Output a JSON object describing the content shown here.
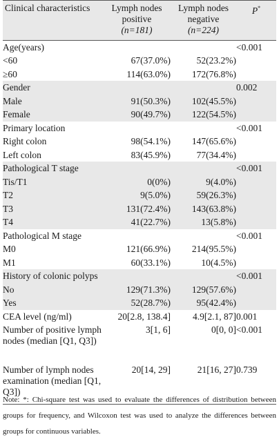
{
  "header": {
    "col1": "Clinical characteristics",
    "col2_line1": "Lymph nodes positive",
    "col2_line2": "(n=181)",
    "col3_line1": "Lymph nodes negative",
    "col3_line2": "(n=224)",
    "col4": "P",
    "col4_sup": "*"
  },
  "rows": [
    {
      "label": "Age(years)",
      "pos": "",
      "neg": "",
      "p": "<0.001",
      "kind": "group",
      "shade": false
    },
    {
      "label": "<60",
      "pos": "67(37.0%)",
      "neg": "52(23.2%)",
      "p": "",
      "kind": "sub",
      "shade": false
    },
    {
      "label": "≥60",
      "pos": "114(63.0%)",
      "neg": "172(76.8%)",
      "p": "",
      "kind": "sub",
      "shade": false
    },
    {
      "label": "Gender",
      "pos": "",
      "neg": "",
      "p": "0.002",
      "kind": "group",
      "shade": true
    },
    {
      "label": "Male",
      "pos": "91(50.3%)",
      "neg": "102(45.5%)",
      "p": "",
      "kind": "sub",
      "shade": true
    },
    {
      "label": "Female",
      "pos": "90(49.7%)",
      "neg": "122(54.5%)",
      "p": "",
      "kind": "sub",
      "shade": true
    },
    {
      "label": "Primary location",
      "pos": "",
      "neg": "",
      "p": "<0.001",
      "kind": "group",
      "shade": false
    },
    {
      "label": "Right colon",
      "pos": "98(54.1%)",
      "neg": "147(65.6%)",
      "p": "",
      "kind": "sub",
      "shade": false
    },
    {
      "label": "Left colon",
      "pos": "83(45.9%)",
      "neg": "77(34.4%)",
      "p": "",
      "kind": "sub",
      "shade": false
    },
    {
      "label": "Pathological T stage",
      "pos": "",
      "neg": "",
      "p": "<0.001",
      "kind": "group",
      "shade": true
    },
    {
      "label": "Tis/T1",
      "pos": "0(0%)",
      "neg": "9(4.0%)",
      "p": "",
      "kind": "sub",
      "shade": true
    },
    {
      "label": "T2",
      "pos": "9(5.0%)",
      "neg": "59(26.3%)",
      "p": "",
      "kind": "sub",
      "shade": true
    },
    {
      "label": "T3",
      "pos": "131(72.4%)",
      "neg": "143(63.8%)",
      "p": "",
      "kind": "sub",
      "shade": true
    },
    {
      "label": "T4",
      "pos": "41(22.7%)",
      "neg": "13(5.8%)",
      "p": "",
      "kind": "sub",
      "shade": true
    },
    {
      "label": "Pathological M stage",
      "pos": "",
      "neg": "",
      "p": "<0.001",
      "kind": "group",
      "shade": false
    },
    {
      "label": "M0",
      "pos": "121(66.9%)",
      "neg": "214(95.5%)",
      "p": "",
      "kind": "sub",
      "shade": false
    },
    {
      "label": "M1",
      "pos": "60(33.1%)",
      "neg": "10(4.5%)",
      "p": "",
      "kind": "sub",
      "shade": false
    },
    {
      "label": "History of  colonic polyps",
      "pos": "",
      "neg": "",
      "p": "<0.001",
      "kind": "group",
      "shade": true
    },
    {
      "label": "No",
      "pos": "129(71.3%)",
      "neg": "129(57.6%)",
      "p": "",
      "kind": "sub",
      "shade": true
    },
    {
      "label": "Yes",
      "pos": "52(28.7%)",
      "neg": "95(42.4%)",
      "p": "",
      "kind": "sub",
      "shade": true
    },
    {
      "label": "CEA level (ng/ml)",
      "pos": "20[2.8, 138.4]",
      "neg": "4.9[2.1, 87]",
      "p": "0.001",
      "kind": "single",
      "shade": false
    },
    {
      "label": "Number of positive lymph nodes (median [Q1, Q3])",
      "pos": "3[1, 6]",
      "neg": "0[0, 0]",
      "p": "<0.001",
      "kind": "multi3",
      "shade": false
    },
    {
      "label": "Number of lymph nodes examination (median [Q1, Q3])",
      "pos": "20[14, 29]",
      "neg": "21[16, 27]",
      "p": "0.739",
      "kind": "multi3b",
      "shade": false
    }
  ],
  "note": "Note: *: Chi-square test was used to evaluate the differences of distribution between groups for frequency, and Wilcoxon test was used to analyze the differences between groups for continuous variables."
}
